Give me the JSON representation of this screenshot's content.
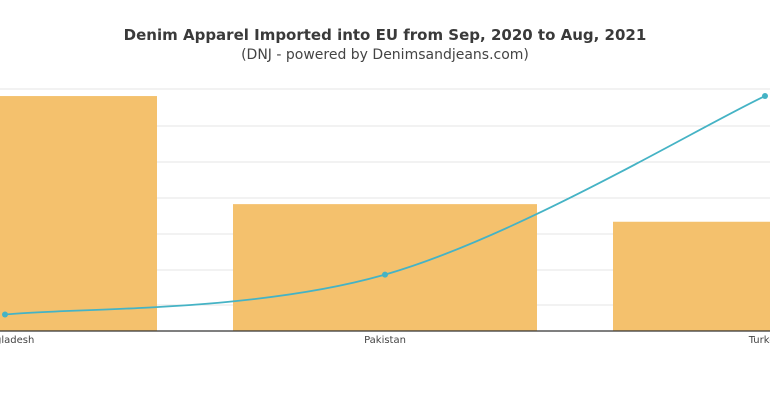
{
  "chart_data": {
    "type": "bar",
    "title": "Denim Apparel Imported into EU from Sep, 2020 to Aug, 2021",
    "subtitle": "(DNJ - powered by Denimsandjeans.com)",
    "categories": [
      "Bangladesh",
      "Pakistan",
      "Turkey"
    ],
    "series": [
      {
        "type": "bar",
        "values": [
          100,
          54,
          46.5
        ]
      },
      {
        "type": "line",
        "values": [
          7,
          24,
          100
        ]
      }
    ],
    "xlabel": "",
    "ylabel": "",
    "ylim": [
      0,
      103
    ],
    "grid": true,
    "colors": {
      "bar": "#f4c16d",
      "line": "#45b3c5",
      "grid": "#e6e6e6",
      "axis": "#333333"
    }
  }
}
